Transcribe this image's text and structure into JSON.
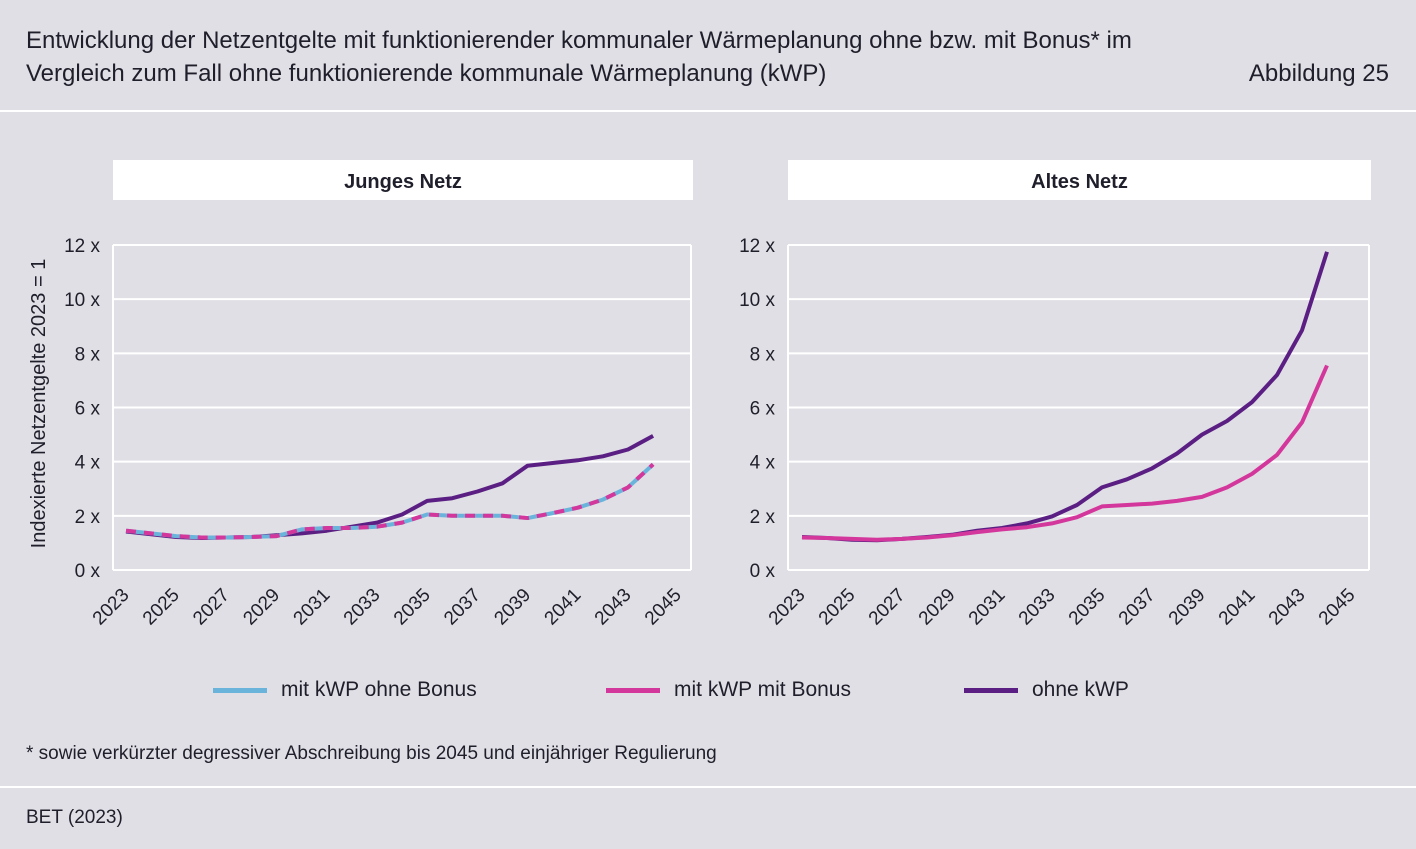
{
  "title": "Entwicklung der Netzentgelte mit funktionierender kommunaler Wärmeplanung ohne bzw. mit Bonus* im Vergleich zum Fall ohne funktionierende kommunale Wärmeplanung (kWP)",
  "figure_label": "Abbildung 25",
  "footnote": "* sowie verkürzter degressiver Abschreibung bis 2045 und einjähriger Regulierung",
  "source": "BET (2023)",
  "legend": [
    {
      "label": "mit kWP ohne Bonus",
      "color": "#6ab4dc"
    },
    {
      "label": "mit kWP mit Bonus",
      "color": "#d4379c"
    },
    {
      "label": "ohne kWP",
      "color": "#5b1f84"
    }
  ],
  "chart_data": [
    {
      "type": "line",
      "title": "Junges Netz",
      "ylabel": "Indexierte Netzentgelte 2023 = 1",
      "xlabel": "",
      "ylim": [
        0,
        12
      ],
      "yticks": [
        0,
        2,
        4,
        6,
        8,
        10,
        12
      ],
      "ytick_labels": [
        "0 x",
        "2 x",
        "4 x",
        "6 x",
        "8 x",
        "10 x",
        "12 x"
      ],
      "x": [
        2023,
        2024,
        2025,
        2026,
        2027,
        2028,
        2029,
        2030,
        2031,
        2032,
        2033,
        2034,
        2035,
        2036,
        2037,
        2038,
        2039,
        2040,
        2041,
        2042,
        2043,
        2044
      ],
      "xtick_labels": [
        "2023",
        "2025",
        "2027",
        "2029",
        "2031",
        "2033",
        "2035",
        "2037",
        "2039",
        "2041",
        "2043",
        "2045"
      ],
      "grid": true,
      "series": [
        {
          "name": "mit kWP ohne Bonus",
          "values": [
            1.45,
            1.35,
            1.25,
            1.2,
            1.2,
            1.22,
            1.25,
            1.5,
            1.55,
            1.55,
            1.6,
            1.75,
            2.05,
            2.0,
            2.0,
            2.0,
            1.92,
            2.1,
            2.3,
            2.6,
            3.05,
            3.9
          ]
        },
        {
          "name": "mit kWP mit Bonus",
          "values": [
            1.45,
            1.35,
            1.25,
            1.2,
            1.2,
            1.22,
            1.25,
            1.5,
            1.55,
            1.55,
            1.6,
            1.75,
            2.05,
            2.0,
            2.0,
            2.0,
            1.92,
            2.1,
            2.3,
            2.6,
            3.05,
            3.9
          ]
        },
        {
          "name": "ohne kWP",
          "values": [
            1.42,
            1.32,
            1.22,
            1.18,
            1.2,
            1.22,
            1.28,
            1.35,
            1.45,
            1.6,
            1.75,
            2.05,
            2.55,
            2.65,
            2.9,
            3.2,
            3.85,
            3.95,
            4.05,
            4.2,
            4.45,
            4.95
          ]
        }
      ]
    },
    {
      "type": "line",
      "title": "Altes Netz",
      "ylabel": "",
      "xlabel": "",
      "ylim": [
        0,
        12
      ],
      "yticks": [
        0,
        2,
        4,
        6,
        8,
        10,
        12
      ],
      "ytick_labels": [
        "0 x",
        "2 x",
        "4 x",
        "6 x",
        "8 x",
        "10 x",
        "12 x"
      ],
      "x": [
        2023,
        2024,
        2025,
        2026,
        2027,
        2028,
        2029,
        2030,
        2031,
        2032,
        2033,
        2034,
        2035,
        2036,
        2037,
        2038,
        2039,
        2040,
        2041,
        2042,
        2043,
        2044
      ],
      "xtick_labels": [
        "2023",
        "2025",
        "2027",
        "2029",
        "2031",
        "2033",
        "2035",
        "2037",
        "2039",
        "2041",
        "2043",
        "2045"
      ],
      "grid": true,
      "series": [
        {
          "name": "mit kWP mit Bonus",
          "values": [
            1.2,
            1.18,
            1.15,
            1.12,
            1.15,
            1.2,
            1.28,
            1.4,
            1.5,
            1.58,
            1.72,
            1.95,
            2.35,
            2.4,
            2.45,
            2.55,
            2.7,
            3.05,
            3.55,
            4.25,
            5.45,
            7.55
          ]
        },
        {
          "name": "ohne kWP",
          "values": [
            1.22,
            1.18,
            1.12,
            1.1,
            1.15,
            1.22,
            1.3,
            1.45,
            1.55,
            1.72,
            1.98,
            2.4,
            3.05,
            3.35,
            3.75,
            4.3,
            5.0,
            5.5,
            6.2,
            7.2,
            8.85,
            11.75
          ]
        }
      ]
    }
  ]
}
